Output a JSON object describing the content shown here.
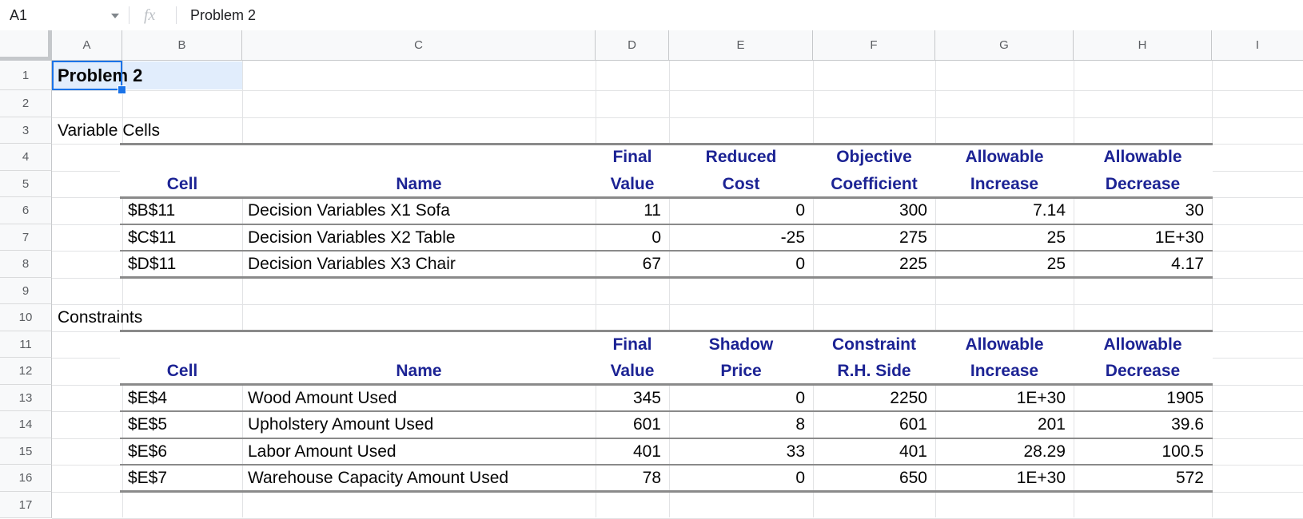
{
  "toolbar": {
    "name_box": "A1",
    "fx_label": "fx",
    "formula": "Problem 2"
  },
  "columns": [
    "A",
    "B",
    "C",
    "D",
    "E",
    "F",
    "G",
    "H",
    "I"
  ],
  "rows": [
    "1",
    "2",
    "3",
    "4",
    "5",
    "6",
    "7",
    "8",
    "9",
    "10",
    "11",
    "12",
    "13",
    "14",
    "15",
    "16",
    "17"
  ],
  "cells": {
    "title": "Problem 2"
  },
  "variable_cells": {
    "label": "Variable Cells",
    "headers": [
      {
        "line1": "",
        "line2": "Cell"
      },
      {
        "line1": "",
        "line2": "Name"
      },
      {
        "line1": "Final",
        "line2": "Value"
      },
      {
        "line1": "Reduced",
        "line2": "Cost"
      },
      {
        "line1": "Objective",
        "line2": "Coefficient"
      },
      {
        "line1": "Allowable",
        "line2": "Increase"
      },
      {
        "line1": "Allowable",
        "line2": "Decrease"
      }
    ],
    "rows": [
      [
        "$B$11",
        "Decision Variables X1 Sofa",
        "11",
        "0",
        "300",
        "7.14",
        "30"
      ],
      [
        "$C$11",
        "Decision Variables X2 Table",
        "0",
        "-25",
        "275",
        "25",
        "1E+30"
      ],
      [
        "$D$11",
        "Decision Variables X3 Chair",
        "67",
        "0",
        "225",
        "25",
        "4.17"
      ]
    ]
  },
  "constraints": {
    "label": "Constraints",
    "headers": [
      {
        "line1": "",
        "line2": "Cell"
      },
      {
        "line1": "",
        "line2": "Name"
      },
      {
        "line1": "Final",
        "line2": "Value"
      },
      {
        "line1": "Shadow",
        "line2": "Price"
      },
      {
        "line1": "Constraint",
        "line2": "R.H. Side"
      },
      {
        "line1": "Allowable",
        "line2": "Increase"
      },
      {
        "line1": "Allowable",
        "line2": "Decrease"
      }
    ],
    "rows": [
      [
        "$E$4",
        "Wood Amount Used",
        "345",
        "0",
        "2250",
        "1E+30",
        "1905"
      ],
      [
        "$E$5",
        "Upholstery Amount Used",
        "601",
        "8",
        "601",
        "201",
        "39.6"
      ],
      [
        "$E$6",
        "Labor Amount Used",
        "401",
        "33",
        "401",
        "28.29",
        "100.5"
      ],
      [
        "$E$7",
        "Warehouse Capacity Amount Used",
        "78",
        "0",
        "650",
        "1E+30",
        "572"
      ]
    ]
  },
  "colors": {
    "accent_blue": "#1a73e8",
    "table_header_text": "#1c2394",
    "table_border": "#8a8a8a",
    "gridline": "#e2e3e5",
    "header_strip_bg": "#f8f9fa"
  }
}
